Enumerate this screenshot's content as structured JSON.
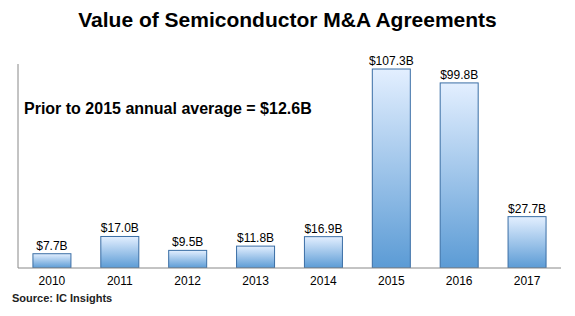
{
  "chart_data": {
    "type": "bar",
    "title": "Value of Semiconductor M&A Agreements",
    "annotations": [
      "Prior to 2015 annual average = $12.6B"
    ],
    "source": "Source: IC Insights",
    "categories": [
      "2010",
      "2011",
      "2012",
      "2013",
      "2014",
      "2015",
      "2016",
      "2017"
    ],
    "values": [
      7.7,
      17.0,
      9.5,
      11.8,
      16.9,
      107.3,
      99.8,
      27.7
    ],
    "value_labels": [
      "$7.7B",
      "$17.0B",
      "$9.5B",
      "$11.8B",
      "$16.9B",
      "$107.3B",
      "$99.8B",
      "$27.7B"
    ],
    "data_labels": true,
    "color": "#5b9bd5",
    "ylim": [
      0,
      110
    ],
    "grid": false,
    "tick_labels": "x"
  }
}
